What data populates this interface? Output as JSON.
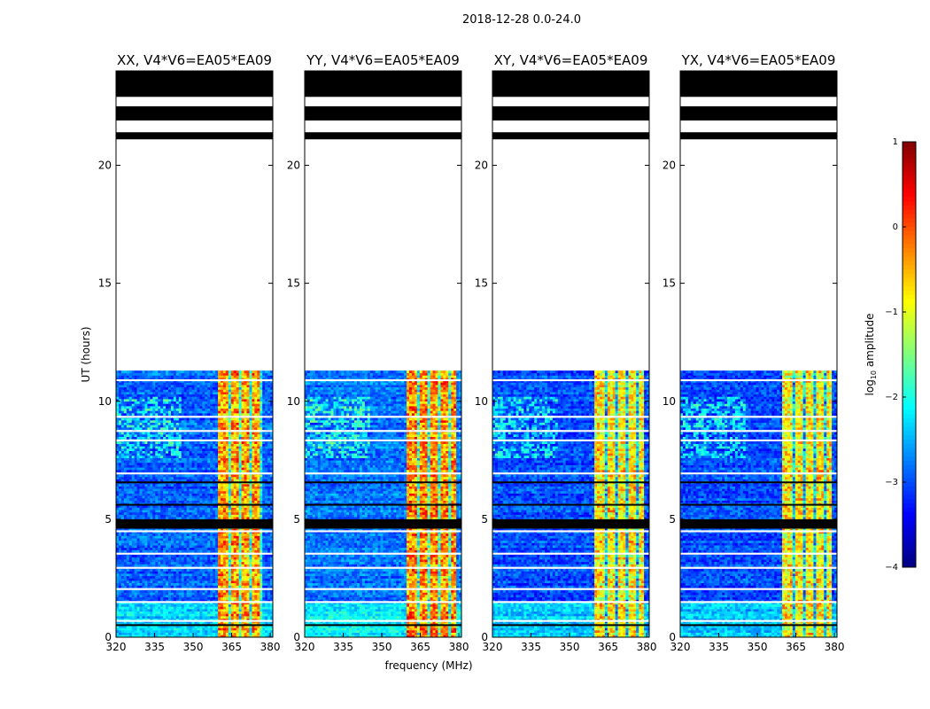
{
  "figure_title": "2018-12-28 0.0-24.0",
  "shared_xlabel": "frequency (MHz)",
  "shared_ylabel": "UT (hours)",
  "colorbar": {
    "label_prefix": "log",
    "label_sub": "10",
    "label_suffix": " amplitude",
    "range": [
      -4,
      1
    ],
    "ticks": [
      1,
      0,
      -1,
      -2,
      -3,
      -4
    ],
    "tick_labels": [
      "1",
      "0",
      "−1",
      "−2",
      "−3",
      "−4"
    ],
    "colormap": "jet"
  },
  "chart_data": [
    {
      "type": "heatmap",
      "title": "XX, V4*V6=EA05*EA09",
      "xlim": [
        320,
        381
      ],
      "ylim": [
        0,
        24
      ],
      "xticks": [
        320,
        335,
        350,
        365,
        380
      ],
      "xtick_labels": [
        "320",
        "335",
        "350",
        "365",
        "380"
      ],
      "yticks": [
        0,
        5,
        10,
        15,
        20
      ],
      "ytick_labels": [
        "0",
        "5",
        "10",
        "15",
        "20"
      ],
      "data_extent_hours": [
        0,
        11.3
      ],
      "strong_band_mhz": [
        359.5,
        376.5
      ],
      "background_level": -2.9,
      "band_level": -0.4,
      "masked_black_hours": [
        [
          22.9,
          24.0
        ],
        [
          21.9,
          22.5
        ],
        [
          21.1,
          21.4
        ],
        [
          4.6,
          5.0
        ]
      ]
    },
    {
      "type": "heatmap",
      "title": "YY, V4*V6=EA05*EA09",
      "xlim": [
        320,
        381
      ],
      "ylim": [
        0,
        24
      ],
      "xticks": [
        320,
        335,
        350,
        365,
        380
      ],
      "xtick_labels": [
        "320",
        "335",
        "350",
        "365",
        "380"
      ],
      "yticks": [
        0,
        5,
        10,
        15,
        20
      ],
      "ytick_labels": [
        "0",
        "5",
        "10",
        "15",
        "20"
      ],
      "data_extent_hours": [
        0,
        11.3
      ],
      "strong_band_mhz": [
        359.5,
        379.0
      ],
      "background_level": -2.8,
      "band_level": -0.3,
      "masked_black_hours": [
        [
          22.9,
          24.0
        ],
        [
          21.9,
          22.5
        ],
        [
          21.1,
          21.4
        ],
        [
          4.6,
          5.0
        ]
      ]
    },
    {
      "type": "heatmap",
      "title": "XY, V4*V6=EA05*EA09",
      "xlim": [
        320,
        381
      ],
      "ylim": [
        0,
        24
      ],
      "xticks": [
        320,
        335,
        350,
        365,
        380
      ],
      "xtick_labels": [
        "320",
        "335",
        "350",
        "365",
        "380"
      ],
      "yticks": [
        0,
        5,
        10,
        15,
        20
      ],
      "ytick_labels": [
        "0",
        "5",
        "10",
        "15",
        "20"
      ],
      "data_extent_hours": [
        0,
        11.3
      ],
      "strong_band_mhz": [
        359.5,
        379.0
      ],
      "background_level": -3.0,
      "band_level": -0.8,
      "masked_black_hours": [
        [
          22.9,
          24.0
        ],
        [
          21.9,
          22.5
        ],
        [
          21.1,
          21.4
        ],
        [
          4.6,
          5.0
        ]
      ]
    },
    {
      "type": "heatmap",
      "title": "YX, V4*V6=EA05*EA09",
      "xlim": [
        320,
        381
      ],
      "ylim": [
        0,
        24
      ],
      "xticks": [
        320,
        335,
        350,
        365,
        380
      ],
      "xtick_labels": [
        "320",
        "335",
        "350",
        "365",
        "380"
      ],
      "yticks": [
        0,
        5,
        10,
        15,
        20
      ],
      "ytick_labels": [
        "0",
        "5",
        "10",
        "15",
        "20"
      ],
      "data_extent_hours": [
        0,
        11.3
      ],
      "strong_band_mhz": [
        359.5,
        379.0
      ],
      "background_level": -3.0,
      "band_level": -0.8,
      "masked_black_hours": [
        [
          22.9,
          24.0
        ],
        [
          21.9,
          22.5
        ],
        [
          21.1,
          21.4
        ],
        [
          4.6,
          5.0
        ]
      ]
    }
  ]
}
